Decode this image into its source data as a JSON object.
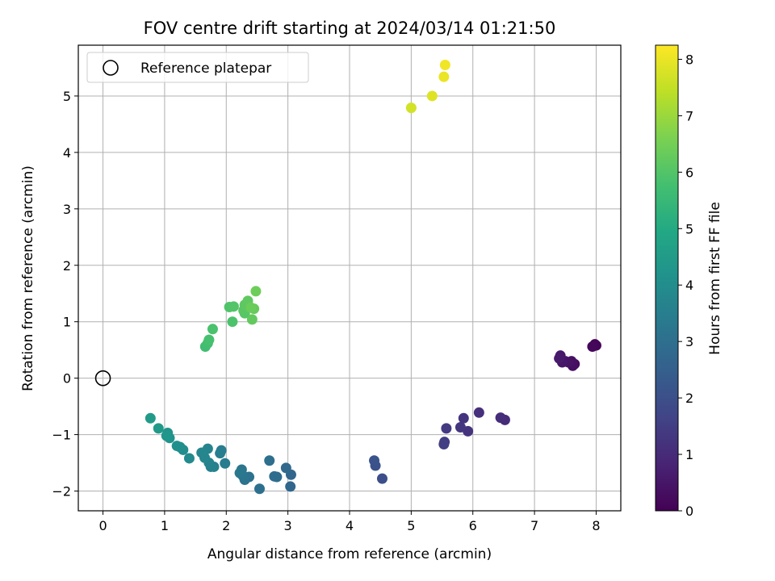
{
  "chart_data": {
    "type": "scatter",
    "title": "FOV centre drift starting at 2024/03/14 01:21:50",
    "xlabel": "Angular distance from reference (arcmin)",
    "ylabel": "Rotation from reference (arcmin)",
    "xlim": [
      -0.4,
      8.4
    ],
    "ylim": [
      -2.35,
      5.9
    ],
    "xticks": [
      "0",
      "1",
      "2",
      "3",
      "4",
      "5",
      "6",
      "7",
      "8"
    ],
    "yticks": [
      "−2",
      "−1",
      "0",
      "1",
      "2",
      "3",
      "4",
      "5"
    ],
    "grid": true,
    "legend": {
      "placement": "top-left",
      "label": "Reference platepar"
    },
    "reference_point": {
      "x": 0,
      "y": 0
    },
    "colorbar": {
      "label": "Hours from first FF file",
      "range": [
        0,
        8.25
      ],
      "ticks": [
        "0",
        "1",
        "2",
        "3",
        "4",
        "5",
        "6",
        "7",
        "8"
      ],
      "colormap": "viridis"
    },
    "points": [
      {
        "x": 7.98,
        "y": 0.6,
        "h": 0.05
      },
      {
        "x": 8.0,
        "y": 0.58,
        "h": 0.1
      },
      {
        "x": 7.94,
        "y": 0.56,
        "h": 0.15
      },
      {
        "x": 7.65,
        "y": 0.25,
        "h": 0.25
      },
      {
        "x": 7.62,
        "y": 0.22,
        "h": 0.3
      },
      {
        "x": 7.6,
        "y": 0.3,
        "h": 0.35
      },
      {
        "x": 7.55,
        "y": 0.28,
        "h": 0.4
      },
      {
        "x": 7.5,
        "y": 0.3,
        "h": 0.45
      },
      {
        "x": 7.45,
        "y": 0.28,
        "h": 0.5
      },
      {
        "x": 7.42,
        "y": 0.4,
        "h": 0.55
      },
      {
        "x": 7.4,
        "y": 0.35,
        "h": 0.6
      },
      {
        "x": 6.52,
        "y": -0.74,
        "h": 1.0
      },
      {
        "x": 6.45,
        "y": -0.7,
        "h": 1.05
      },
      {
        "x": 6.1,
        "y": -0.61,
        "h": 1.1
      },
      {
        "x": 5.92,
        "y": -0.94,
        "h": 1.2
      },
      {
        "x": 5.85,
        "y": -0.71,
        "h": 1.25
      },
      {
        "x": 5.8,
        "y": -0.87,
        "h": 1.3
      },
      {
        "x": 5.57,
        "y": -0.89,
        "h": 1.4
      },
      {
        "x": 5.54,
        "y": -1.13,
        "h": 1.45
      },
      {
        "x": 5.53,
        "y": -1.17,
        "h": 1.5
      },
      {
        "x": 4.53,
        "y": -1.78,
        "h": 2.0
      },
      {
        "x": 4.42,
        "y": -1.55,
        "h": 2.05
      },
      {
        "x": 4.4,
        "y": -1.46,
        "h": 2.1
      },
      {
        "x": 3.05,
        "y": -1.71,
        "h": 2.7
      },
      {
        "x": 3.04,
        "y": -1.92,
        "h": 2.75
      },
      {
        "x": 2.97,
        "y": -1.59,
        "h": 2.8
      },
      {
        "x": 2.82,
        "y": -1.75,
        "h": 2.9
      },
      {
        "x": 2.78,
        "y": -1.74,
        "h": 2.95
      },
      {
        "x": 2.7,
        "y": -1.46,
        "h": 3.0
      },
      {
        "x": 2.54,
        "y": -1.96,
        "h": 3.05
      },
      {
        "x": 2.37,
        "y": -1.75,
        "h": 3.1
      },
      {
        "x": 2.3,
        "y": -1.8,
        "h": 3.15
      },
      {
        "x": 2.27,
        "y": -1.73,
        "h": 3.2
      },
      {
        "x": 2.25,
        "y": -1.62,
        "h": 3.25
      },
      {
        "x": 2.22,
        "y": -1.68,
        "h": 3.3
      },
      {
        "x": 1.98,
        "y": -1.51,
        "h": 3.4
      },
      {
        "x": 1.92,
        "y": -1.28,
        "h": 3.45
      },
      {
        "x": 1.9,
        "y": -1.33,
        "h": 3.5
      },
      {
        "x": 1.8,
        "y": -1.57,
        "h": 3.55
      },
      {
        "x": 1.75,
        "y": -1.57,
        "h": 3.6
      },
      {
        "x": 1.72,
        "y": -1.5,
        "h": 3.65
      },
      {
        "x": 1.7,
        "y": -1.25,
        "h": 3.7
      },
      {
        "x": 1.65,
        "y": -1.41,
        "h": 3.75
      },
      {
        "x": 1.6,
        "y": -1.32,
        "h": 3.8
      },
      {
        "x": 1.4,
        "y": -1.42,
        "h": 3.9
      },
      {
        "x": 1.3,
        "y": -1.27,
        "h": 4.0
      },
      {
        "x": 1.25,
        "y": -1.22,
        "h": 4.05
      },
      {
        "x": 1.2,
        "y": -1.2,
        "h": 4.1
      },
      {
        "x": 1.08,
        "y": -1.06,
        "h": 4.2
      },
      {
        "x": 1.05,
        "y": -0.97,
        "h": 4.25
      },
      {
        "x": 1.03,
        "y": -1.02,
        "h": 4.3
      },
      {
        "x": 0.9,
        "y": -0.89,
        "h": 4.4
      },
      {
        "x": 0.77,
        "y": -0.71,
        "h": 4.5
      },
      {
        "x": 1.66,
        "y": 0.56,
        "h": 5.7
      },
      {
        "x": 1.7,
        "y": 0.62,
        "h": 5.75
      },
      {
        "x": 1.72,
        "y": 0.68,
        "h": 5.8
      },
      {
        "x": 1.78,
        "y": 0.87,
        "h": 5.85
      },
      {
        "x": 2.1,
        "y": 1.0,
        "h": 5.9
      },
      {
        "x": 2.05,
        "y": 1.26,
        "h": 5.95
      },
      {
        "x": 2.12,
        "y": 1.27,
        "h": 6.0
      },
      {
        "x": 2.3,
        "y": 1.15,
        "h": 6.05
      },
      {
        "x": 2.28,
        "y": 1.2,
        "h": 6.1
      },
      {
        "x": 2.3,
        "y": 1.3,
        "h": 6.15
      },
      {
        "x": 2.35,
        "y": 1.37,
        "h": 6.2
      },
      {
        "x": 2.42,
        "y": 1.04,
        "h": 6.25
      },
      {
        "x": 2.45,
        "y": 1.23,
        "h": 6.3
      },
      {
        "x": 2.4,
        "y": 1.25,
        "h": 6.35
      },
      {
        "x": 2.48,
        "y": 1.54,
        "h": 6.4
      },
      {
        "x": 5.0,
        "y": 4.79,
        "h": 7.7
      },
      {
        "x": 5.34,
        "y": 5.0,
        "h": 7.85
      },
      {
        "x": 5.53,
        "y": 5.34,
        "h": 8.0
      },
      {
        "x": 5.55,
        "y": 5.55,
        "h": 8.1
      }
    ]
  }
}
